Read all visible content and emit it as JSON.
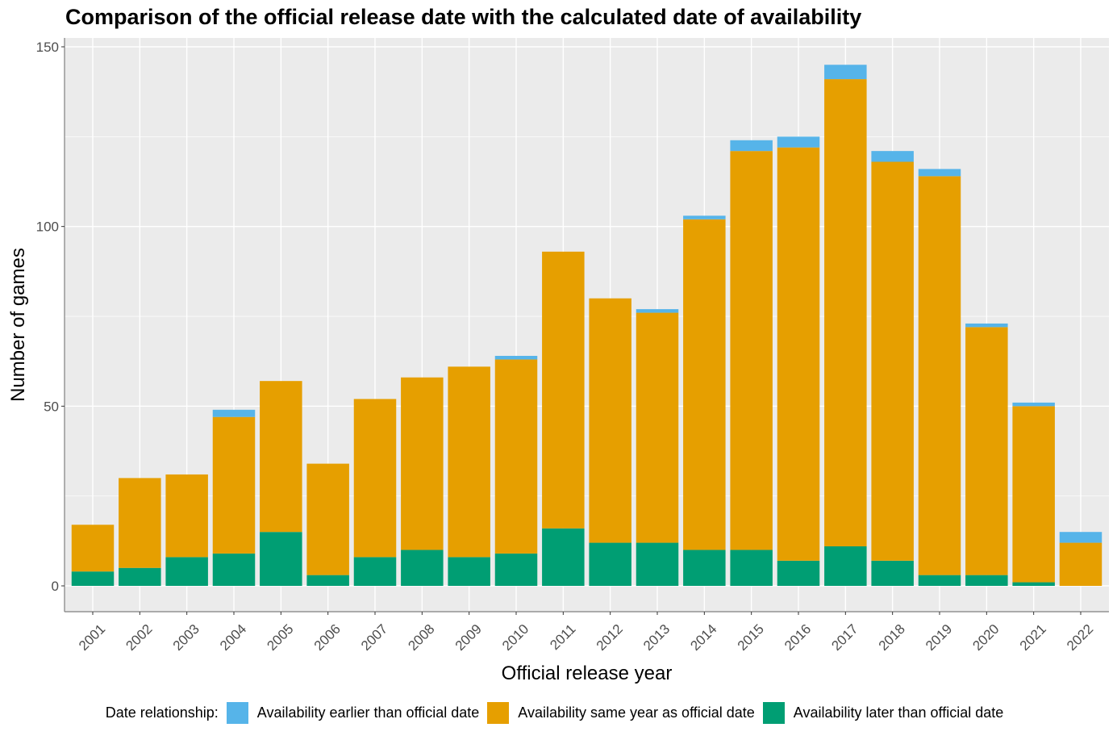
{
  "chart_data": {
    "type": "bar",
    "stacked": true,
    "title": "Comparison of the official release date with the calculated date of availability",
    "xlabel": "Official release year",
    "ylabel": "Number of games",
    "ylim": [
      -7,
      151
    ],
    "yticks": [
      0,
      50,
      100,
      150
    ],
    "grid": true,
    "legend_position": "bottom",
    "legend_title": "Date relationship:",
    "categories": [
      "2001",
      "2002",
      "2003",
      "2004",
      "2005",
      "2006",
      "2007",
      "2008",
      "2009",
      "2010",
      "2011",
      "2012",
      "2013",
      "2014",
      "2015",
      "2016",
      "2017",
      "2018",
      "2019",
      "2020",
      "2021",
      "2022"
    ],
    "series": [
      {
        "name": "Availability later than official date",
        "color": "#009E73",
        "values": [
          4,
          5,
          8,
          9,
          15,
          3,
          8,
          10,
          8,
          9,
          16,
          12,
          12,
          10,
          10,
          7,
          11,
          7,
          3,
          3,
          1,
          0
        ]
      },
      {
        "name": "Availability same year as official date",
        "color": "#E69F00",
        "values": [
          13,
          25,
          23,
          38,
          42,
          31,
          44,
          48,
          53,
          54,
          77,
          68,
          64,
          92,
          111,
          115,
          130,
          111,
          111,
          69,
          49,
          12
        ]
      },
      {
        "name": "Availability earlier than official date",
        "color": "#56B4E9",
        "values": [
          0,
          0,
          0,
          2,
          0,
          0,
          0,
          0,
          0,
          1,
          0,
          0,
          1,
          1,
          3,
          3,
          4,
          3,
          2,
          1,
          1,
          3
        ]
      }
    ],
    "legend_order": [
      2,
      1,
      0
    ]
  }
}
